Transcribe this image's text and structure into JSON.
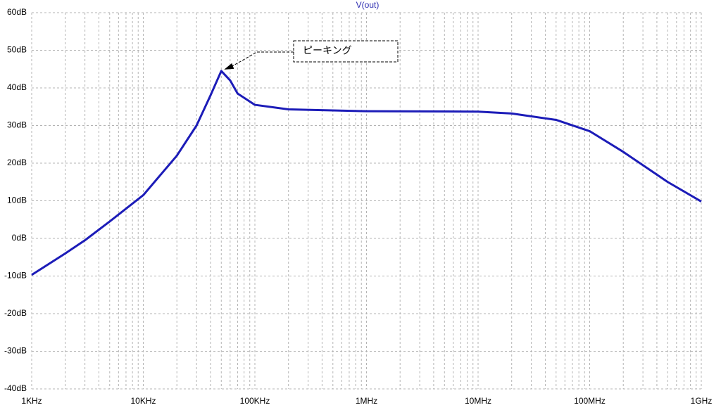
{
  "chart_data": {
    "type": "line",
    "title": "V(out)",
    "x": [
      1000,
      2000,
      3000,
      5000,
      10000,
      20000,
      30000,
      40000,
      50000,
      60000,
      70000,
      100000,
      200000,
      1000000,
      10000000,
      20000000,
      50000000,
      100000000,
      200000000,
      500000000,
      1000000000
    ],
    "series": [
      {
        "name": "V(out)",
        "color": "#1c1cb8",
        "values": [
          -9.7,
          -4,
          -0.5,
          4.5,
          11.5,
          22,
          30,
          38,
          44.5,
          42,
          38.5,
          35.5,
          34.3,
          33.8,
          33.7,
          33.2,
          31.5,
          28.5,
          23,
          15,
          9.8
        ]
      }
    ],
    "xlog": true,
    "xlim": [
      1000,
      1000000000
    ],
    "xticks": [
      {
        "value": 1000,
        "label": "1KHz"
      },
      {
        "value": 10000,
        "label": "10KHz"
      },
      {
        "value": 100000,
        "label": "100KHz"
      },
      {
        "value": 1000000,
        "label": "1MHz"
      },
      {
        "value": 10000000,
        "label": "10MHz"
      },
      {
        "value": 100000000,
        "label": "100MHz"
      },
      {
        "value": 1000000000,
        "label": "1GHz"
      }
    ],
    "ylim": [
      -40,
      60
    ],
    "yticks": [
      {
        "value": -40,
        "label": "-40dB"
      },
      {
        "value": -30,
        "label": "-30dB"
      },
      {
        "value": -20,
        "label": "-20dB"
      },
      {
        "value": -10,
        "label": "-10dB"
      },
      {
        "value": 0,
        "label": "0dB"
      },
      {
        "value": 10,
        "label": "10dB"
      },
      {
        "value": 20,
        "label": "20dB"
      },
      {
        "value": 30,
        "label": "30dB"
      },
      {
        "value": 40,
        "label": "40dB"
      },
      {
        "value": 50,
        "label": "50dB"
      },
      {
        "value": 60,
        "label": "60dB"
      }
    ],
    "grid": true,
    "annotation": "ピーキング"
  }
}
